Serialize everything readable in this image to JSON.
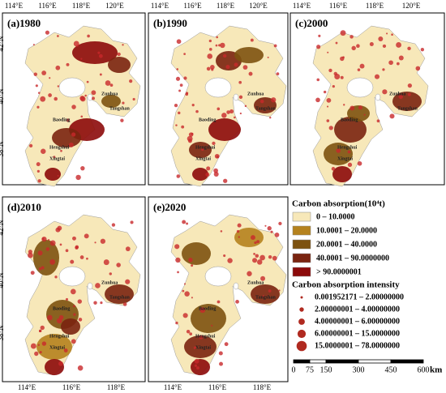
{
  "panels": [
    {
      "label": "(a)1980",
      "top_ticks": [
        "114°E",
        "116°E",
        "118°E",
        "120°E"
      ],
      "left_ticks": [
        "42°N",
        "40°N",
        "38°N"
      ],
      "cities": [
        "Zunhua",
        "Tangshan",
        "Baoding",
        "Hengshui",
        "Xingtai"
      ]
    },
    {
      "label": "(b)1990",
      "top_ticks": [
        "114°E",
        "116°E",
        "118°E",
        "120°E"
      ],
      "cities": [
        "Zunhua",
        "Tangshan",
        "Baoding",
        "Hengshui",
        "Xingtai"
      ]
    },
    {
      "label": "(c)2000",
      "top_ticks": [
        "114°E",
        "116°E",
        "118°E",
        "120°E"
      ],
      "cities": [
        "Zunhua",
        "Tangshan",
        "Baoding",
        "Hengshui",
        "Xingtai"
      ]
    },
    {
      "label": "(d)2010",
      "bottom_ticks": [
        "114°E",
        "116°E",
        "118°E"
      ],
      "left_ticks": [
        "42°N",
        "40°N",
        "38°N"
      ],
      "cities": [
        "Zunhua",
        "Tangshan",
        "Baoding",
        "Hengshui",
        "Xingtai"
      ]
    },
    {
      "label": "(e)2020",
      "bottom_ticks": [
        "114°E",
        "116°E",
        "118°E"
      ],
      "cities": [
        "Zunhua",
        "Tangshan",
        "Baoding",
        "Hengshui",
        "Xingtai"
      ]
    }
  ],
  "legend": {
    "carbon_title": "Carbon absorption(10⁴t)",
    "carbon_classes": [
      "0 – 10.0000",
      "10.0001 – 20.0000",
      "20.0001 – 40.0000",
      "40.0001 – 90.0000000",
      "> 90.0000001"
    ],
    "intensity_title": "Carbon absorption intensity",
    "intensity_classes": [
      "0.001952171 – 2.00000000",
      "2.00000001 – 4.00000000",
      "4.00000001 – 6.00000000",
      "6.00000001 – 15.0000000",
      "15.0000001 – 78.0000000"
    ]
  },
  "scale": {
    "ticks": [
      "0",
      "75",
      "150",
      "300",
      "450",
      "600"
    ],
    "unit": "km"
  }
}
